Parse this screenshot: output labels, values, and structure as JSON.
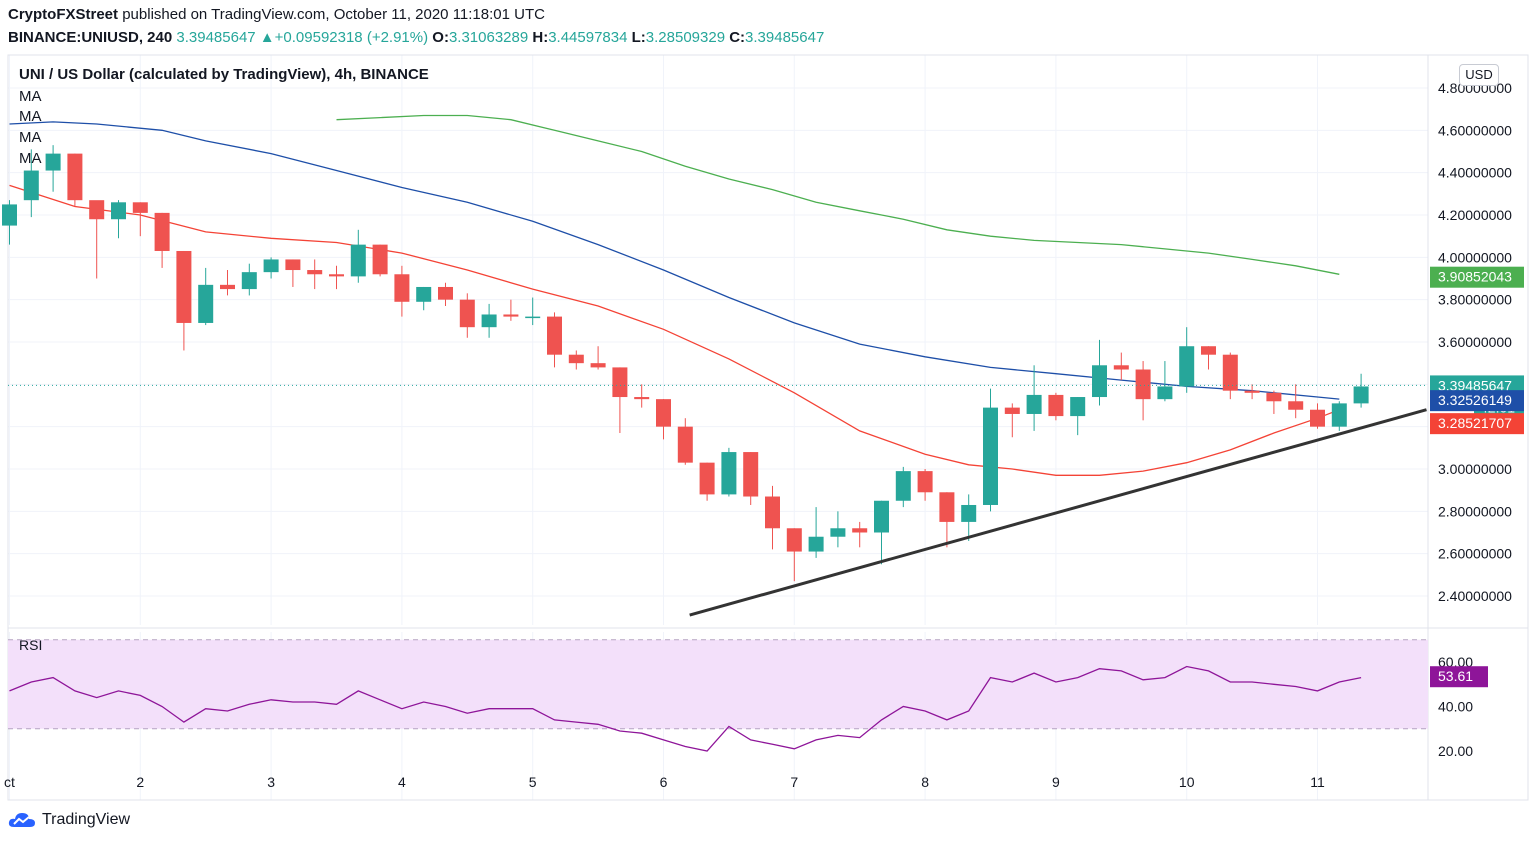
{
  "header": {
    "publisher": "CryptoFXStreet",
    "published_text": "published on TradingView.com, October 11, 2020 11:18:01 UTC",
    "symbol": "BINANCE:UNIUSD, 240",
    "last": "3.39485647",
    "change": "▲+0.09592318 (+2.91%)",
    "o_label": "O:",
    "o": "3.31063289",
    "h_label": "H:",
    "h": "3.44597834",
    "l_label": "L:",
    "l": "3.28509329",
    "c_label": "C:",
    "c": "3.39485647"
  },
  "legend": {
    "title": "UNI / US Dollar (calculated by TradingView), 4h, BINANCE",
    "ma_labels": [
      "MA",
      "MA",
      "MA",
      "MA"
    ],
    "rsi_label": "RSI"
  },
  "currency_badge": "USD",
  "branding": "TradingView",
  "colors": {
    "up": "#26a69a",
    "down": "#ef5350",
    "ma_green": "#4caf50",
    "ma_blue": "#1e4fa8",
    "ma_red": "#f44336",
    "rsi_line": "#8e1599",
    "rsi_band": "#f3e0fa",
    "trendline": "#333333"
  },
  "chart_data": [
    {
      "type": "candlestick",
      "title": "UNI / US Dollar (calculated by TradingView), 4h, BINANCE",
      "ylim": [
        2.28,
        4.9
      ],
      "y_ticks": [
        "2.40000000",
        "2.60000000",
        "2.80000000",
        "3.00000000",
        "3.20000000",
        "3.40000000",
        "3.60000000",
        "3.80000000",
        "4.00000000",
        "4.20000000",
        "4.40000000",
        "4.60000000",
        "4.80000000"
      ],
      "x_ticks": [
        {
          "label": "ct",
          "t": 0
        },
        {
          "label": "2",
          "t": 6
        },
        {
          "label": "3",
          "t": 12
        },
        {
          "label": "4",
          "t": 18
        },
        {
          "label": "5",
          "t": 24
        },
        {
          "label": "6",
          "t": 30
        },
        {
          "label": "7",
          "t": 36
        },
        {
          "label": "8",
          "t": 42
        },
        {
          "label": "9",
          "t": 48
        },
        {
          "label": "10",
          "t": 54
        },
        {
          "label": "11",
          "t": 60
        }
      ],
      "candles": [
        [
          4.15,
          4.25,
          4.06,
          4.27
        ],
        [
          4.27,
          4.41,
          4.19,
          4.51
        ],
        [
          4.41,
          4.49,
          4.31,
          4.53
        ],
        [
          4.49,
          4.27,
          4.24,
          4.49
        ],
        [
          4.27,
          4.18,
          3.9,
          4.26
        ],
        [
          4.18,
          4.26,
          4.09,
          4.27
        ],
        [
          4.26,
          4.21,
          4.1,
          4.26
        ],
        [
          4.21,
          4.03,
          3.95,
          4.21
        ],
        [
          4.03,
          3.69,
          3.56,
          4.03
        ],
        [
          3.69,
          3.87,
          3.68,
          3.95
        ],
        [
          3.87,
          3.85,
          3.82,
          3.94
        ],
        [
          3.85,
          3.93,
          3.82,
          3.97
        ],
        [
          3.93,
          3.99,
          3.9,
          4.0
        ],
        [
          3.99,
          3.94,
          3.86,
          3.99
        ],
        [
          3.94,
          3.92,
          3.85,
          3.99
        ],
        [
          3.92,
          3.91,
          3.85,
          3.96
        ],
        [
          3.91,
          4.06,
          3.88,
          4.13
        ],
        [
          4.06,
          3.92,
          3.91,
          4.06
        ],
        [
          3.92,
          3.79,
          3.72,
          3.96
        ],
        [
          3.79,
          3.86,
          3.75,
          3.86
        ],
        [
          3.86,
          3.8,
          3.77,
          3.88
        ],
        [
          3.8,
          3.67,
          3.62,
          3.83
        ],
        [
          3.67,
          3.73,
          3.62,
          3.78
        ],
        [
          3.73,
          3.72,
          3.7,
          3.8
        ],
        [
          3.72,
          3.72,
          3.68,
          3.81
        ],
        [
          3.72,
          3.54,
          3.48,
          3.74
        ],
        [
          3.54,
          3.5,
          3.47,
          3.56
        ],
        [
          3.5,
          3.48,
          3.47,
          3.58
        ],
        [
          3.48,
          3.34,
          3.17,
          3.48
        ],
        [
          3.34,
          3.33,
          3.29,
          3.4
        ],
        [
          3.33,
          3.2,
          3.14,
          3.33
        ],
        [
          3.2,
          3.03,
          3.02,
          3.24
        ],
        [
          3.03,
          2.88,
          2.85,
          3.03
        ],
        [
          2.88,
          3.08,
          2.87,
          3.1
        ],
        [
          3.08,
          2.87,
          2.83,
          3.08
        ],
        [
          2.87,
          2.72,
          2.62,
          2.92
        ],
        [
          2.72,
          2.61,
          2.47,
          2.72
        ],
        [
          2.61,
          2.68,
          2.58,
          2.82
        ],
        [
          2.68,
          2.72,
          2.63,
          2.8
        ],
        [
          2.72,
          2.7,
          2.63,
          2.75
        ],
        [
          2.7,
          2.85,
          2.55,
          2.85
        ],
        [
          2.85,
          2.99,
          2.82,
          3.01
        ],
        [
          2.99,
          2.89,
          2.85,
          3.0
        ],
        [
          2.89,
          2.75,
          2.63,
          2.89
        ],
        [
          2.75,
          2.83,
          2.66,
          2.88
        ],
        [
          2.83,
          3.29,
          2.8,
          3.38
        ],
        [
          3.29,
          3.26,
          3.15,
          3.31
        ],
        [
          3.26,
          3.35,
          3.18,
          3.49
        ],
        [
          3.35,
          3.25,
          3.23,
          3.36
        ],
        [
          3.25,
          3.34,
          3.16,
          3.34
        ],
        [
          3.34,
          3.49,
          3.3,
          3.61
        ],
        [
          3.49,
          3.47,
          3.42,
          3.55
        ],
        [
          3.47,
          3.33,
          3.23,
          3.51
        ],
        [
          3.33,
          3.39,
          3.32,
          3.51
        ],
        [
          3.39,
          3.58,
          3.36,
          3.67
        ],
        [
          3.58,
          3.54,
          3.47,
          3.58
        ],
        [
          3.54,
          3.37,
          3.33,
          3.55
        ],
        [
          3.37,
          3.36,
          3.33,
          3.4
        ],
        [
          3.36,
          3.32,
          3.26,
          3.37
        ],
        [
          3.32,
          3.28,
          3.24,
          3.4
        ],
        [
          3.28,
          3.2,
          3.19,
          3.31
        ],
        [
          3.2,
          3.31,
          3.18,
          3.32
        ],
        [
          3.31,
          3.39,
          3.29,
          3.45
        ]
      ],
      "ma_series": [
        {
          "color_key": "ma_green",
          "points": [
            [
              15,
              4.65
            ],
            [
              17,
              4.66
            ],
            [
              19,
              4.67
            ],
            [
              21,
              4.67
            ],
            [
              23,
              4.65
            ],
            [
              25,
              4.6
            ],
            [
              27,
              4.55
            ],
            [
              29,
              4.5
            ],
            [
              31,
              4.43
            ],
            [
              33,
              4.37
            ],
            [
              35,
              4.32
            ],
            [
              37,
              4.26
            ],
            [
              39,
              4.22
            ],
            [
              41,
              4.18
            ],
            [
              43,
              4.13
            ],
            [
              45,
              4.1
            ],
            [
              47,
              4.08
            ],
            [
              49,
              4.07
            ],
            [
              51,
              4.06
            ],
            [
              53,
              4.04
            ],
            [
              55,
              4.02
            ],
            [
              57,
              3.99
            ],
            [
              59,
              3.96
            ],
            [
              61,
              3.92
            ]
          ]
        },
        {
          "color_key": "ma_blue",
          "points": [
            [
              0,
              4.63
            ],
            [
              2,
              4.64
            ],
            [
              4,
              4.63
            ],
            [
              7,
              4.6
            ],
            [
              9,
              4.55
            ],
            [
              12,
              4.49
            ],
            [
              15,
              4.41
            ],
            [
              18,
              4.33
            ],
            [
              21,
              4.26
            ],
            [
              24,
              4.17
            ],
            [
              27,
              4.06
            ],
            [
              30,
              3.94
            ],
            [
              33,
              3.81
            ],
            [
              36,
              3.69
            ],
            [
              39,
              3.59
            ],
            [
              42,
              3.53
            ],
            [
              45,
              3.48
            ],
            [
              48,
              3.45
            ],
            [
              51,
              3.42
            ],
            [
              54,
              3.39
            ],
            [
              57,
              3.37
            ],
            [
              60,
              3.34
            ],
            [
              61,
              3.33
            ]
          ]
        },
        {
          "color_key": "ma_red",
          "points": [
            [
              0,
              4.34
            ],
            [
              3,
              4.24
            ],
            [
              6,
              4.2
            ],
            [
              9,
              4.12
            ],
            [
              12,
              4.09
            ],
            [
              15,
              4.07
            ],
            [
              18,
              4.02
            ],
            [
              21,
              3.94
            ],
            [
              24,
              3.85
            ],
            [
              27,
              3.77
            ],
            [
              30,
              3.66
            ],
            [
              33,
              3.52
            ],
            [
              36,
              3.36
            ],
            [
              39,
              3.18
            ],
            [
              42,
              3.07
            ],
            [
              44,
              3.02
            ],
            [
              46,
              3.0
            ],
            [
              48,
              2.97
            ],
            [
              50,
              2.97
            ],
            [
              52,
              2.99
            ],
            [
              54,
              3.03
            ],
            [
              56,
              3.09
            ],
            [
              58,
              3.17
            ],
            [
              60,
              3.24
            ],
            [
              61,
              3.28
            ]
          ]
        }
      ],
      "trendline": {
        "from": [
          31.2,
          2.31
        ],
        "to": [
          65.0,
          3.28
        ]
      },
      "price_labels": [
        {
          "value": 3.90852043,
          "text": "3.90852043",
          "color_key": "ma_green"
        },
        {
          "value": 3.39485647,
          "text": "3.39485647",
          "color_key": "up"
        },
        {
          "value": 3.32526149,
          "text": "3.32526149",
          "color_key": "ma_blue"
        },
        {
          "value": 3.28521707,
          "text": "3.28521707",
          "color_key": "ma_red"
        }
      ],
      "countdown": "42:01"
    },
    {
      "type": "line",
      "title": "RSI",
      "ylim": [
        14,
        74
      ],
      "band": [
        30,
        70
      ],
      "y_ticks": [
        "20.00",
        "40.00",
        "60.00"
      ],
      "current": {
        "value": 53.61,
        "text": "53.61"
      },
      "values": [
        [
          0,
          47
        ],
        [
          1,
          51
        ],
        [
          2,
          53
        ],
        [
          3,
          47
        ],
        [
          4,
          44
        ],
        [
          5,
          47
        ],
        [
          6,
          45
        ],
        [
          7,
          40
        ],
        [
          8,
          33
        ],
        [
          9,
          39
        ],
        [
          10,
          38
        ],
        [
          11,
          41
        ],
        [
          12,
          43
        ],
        [
          13,
          42
        ],
        [
          14,
          42
        ],
        [
          15,
          41
        ],
        [
          16,
          47
        ],
        [
          17,
          43
        ],
        [
          18,
          39
        ],
        [
          19,
          42
        ],
        [
          20,
          40
        ],
        [
          21,
          37
        ],
        [
          22,
          39
        ],
        [
          23,
          39
        ],
        [
          24,
          39
        ],
        [
          25,
          34
        ],
        [
          26,
          33
        ],
        [
          27,
          32
        ],
        [
          28,
          29
        ],
        [
          29,
          28
        ],
        [
          30,
          25
        ],
        [
          31,
          22
        ],
        [
          32,
          20
        ],
        [
          33,
          31
        ],
        [
          34,
          25
        ],
        [
          35,
          23
        ],
        [
          36,
          21
        ],
        [
          37,
          25
        ],
        [
          38,
          27
        ],
        [
          39,
          26
        ],
        [
          40,
          34
        ],
        [
          41,
          40
        ],
        [
          42,
          38
        ],
        [
          43,
          34
        ],
        [
          44,
          38
        ],
        [
          45,
          53
        ],
        [
          46,
          51
        ],
        [
          47,
          55
        ],
        [
          48,
          51
        ],
        [
          49,
          53
        ],
        [
          50,
          57
        ],
        [
          51,
          56
        ],
        [
          52,
          52
        ],
        [
          53,
          53
        ],
        [
          54,
          58
        ],
        [
          55,
          56
        ],
        [
          56,
          51
        ],
        [
          57,
          51
        ],
        [
          58,
          50
        ],
        [
          59,
          49
        ],
        [
          60,
          47
        ],
        [
          61,
          51
        ],
        [
          62,
          53
        ]
      ]
    }
  ]
}
